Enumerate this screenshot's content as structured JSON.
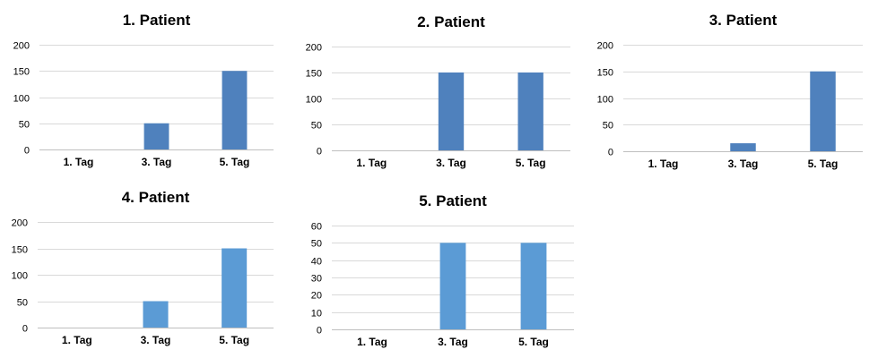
{
  "chart_data": [
    {
      "type": "bar",
      "title": "1. Patient",
      "categories": [
        "1. Tag",
        "3. Tag",
        "5. Tag"
      ],
      "values": [
        0,
        50,
        150
      ],
      "ylim": [
        0,
        200
      ],
      "yticks": [
        0,
        50,
        100,
        150,
        200
      ],
      "grid": true,
      "color": "#4f81bd"
    },
    {
      "type": "bar",
      "title": "2. Patient",
      "categories": [
        "1. Tag",
        "3. Tag",
        "5. Tag"
      ],
      "values": [
        0,
        150,
        150
      ],
      "ylim": [
        0,
        200
      ],
      "yticks": [
        0,
        50,
        100,
        150,
        200
      ],
      "grid": true,
      "color": "#4f81bd"
    },
    {
      "type": "bar",
      "title": "3. Patient",
      "categories": [
        "1. Tag",
        "3. Tag",
        "5. Tag"
      ],
      "values": [
        0,
        15,
        150
      ],
      "ylim": [
        0,
        200
      ],
      "yticks": [
        0,
        50,
        100,
        150,
        200
      ],
      "grid": true,
      "color": "#4f81bd"
    },
    {
      "type": "bar",
      "title": "4. Patient",
      "categories": [
        "1. Tag",
        "3. Tag",
        "5. Tag"
      ],
      "values": [
        0,
        50,
        150
      ],
      "ylim": [
        0,
        200
      ],
      "yticks": [
        0,
        50,
        100,
        150,
        200
      ],
      "grid": true,
      "color": "#5b9bd5"
    },
    {
      "type": "bar",
      "title": "5. Patient",
      "categories": [
        "1. Tag",
        "3. Tag",
        "5. Tag"
      ],
      "values": [
        0,
        50,
        50
      ],
      "ylim": [
        0,
        60
      ],
      "yticks": [
        0,
        10,
        20,
        30,
        40,
        50,
        60
      ],
      "grid": true,
      "color": "#5b9bd5"
    }
  ]
}
